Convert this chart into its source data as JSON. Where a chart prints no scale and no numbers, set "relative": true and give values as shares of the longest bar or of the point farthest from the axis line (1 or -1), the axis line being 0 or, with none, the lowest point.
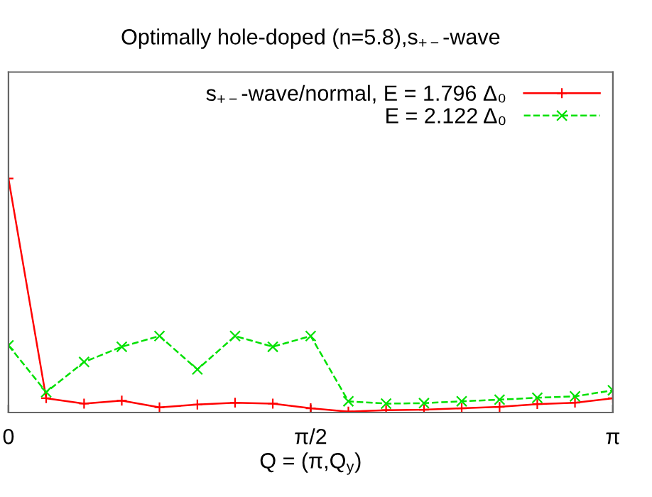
{
  "chart_data": {
    "type": "line",
    "title": "Optimally hole-doped (n=5.8),s$_{+−}$-wave",
    "xlabel": "Q = (π,Q$_{y}$)",
    "x": [
      0,
      0.196,
      0.393,
      0.589,
      0.785,
      0.982,
      1.178,
      1.374,
      1.571,
      1.767,
      1.963,
      2.16,
      2.356,
      2.553,
      2.749,
      2.945,
      3.142
    ],
    "xlim": [
      0,
      3.142
    ],
    "xticks": [
      {
        "value": 0,
        "label": "0"
      },
      {
        "value": 1.571,
        "label": "π/2"
      },
      {
        "value": 3.142,
        "label": "π"
      }
    ],
    "relative": true,
    "grid": false,
    "legend": "top right",
    "tick_labels": "x",
    "series": [
      {
        "name": "s$_{+−}$-wave/normal, E = 1.796 Δ₀",
        "color": "#ff0000",
        "marker": "plus",
        "line_style": "solid",
        "values": [
          1.0,
          0.061,
          0.038,
          0.051,
          0.022,
          0.034,
          0.042,
          0.038,
          0.018,
          0.004,
          0.01,
          0.012,
          0.018,
          0.024,
          0.036,
          0.042,
          0.061
        ]
      },
      {
        "name": "E = 2.122 Δ₀",
        "color": "#00e000",
        "marker": "cross",
        "line_style": "dashed",
        "values": [
          0.287,
          0.087,
          0.216,
          0.281,
          0.327,
          0.184,
          0.327,
          0.281,
          0.327,
          0.048,
          0.038,
          0.04,
          0.048,
          0.055,
          0.063,
          0.069,
          0.095
        ]
      }
    ]
  }
}
